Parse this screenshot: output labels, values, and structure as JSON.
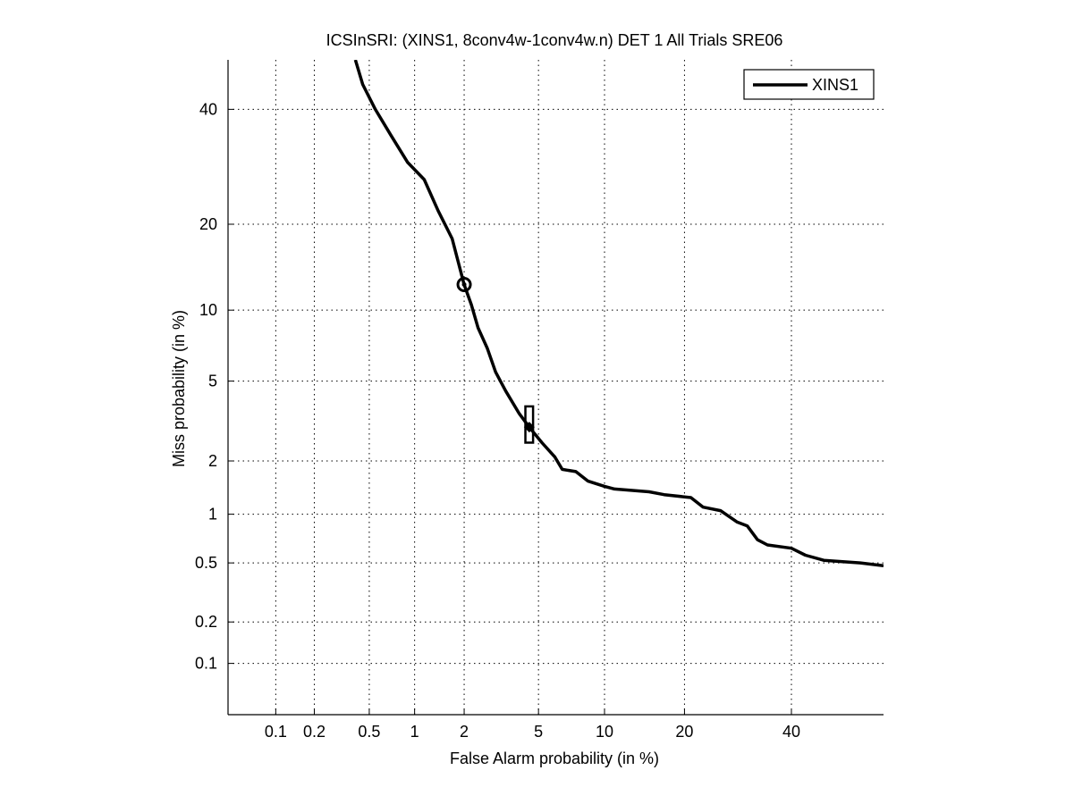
{
  "chart_data": {
    "type": "line",
    "title": "ICSInSRI: (XINS1, 8conv4w-1conv4w.n) DET 1 All Trials SRE06",
    "xlabel": "False Alarm probability (in %)",
    "ylabel": "Miss probability (in %)",
    "x_scale": "probit",
    "y_scale": "probit",
    "xlim": [
      0.04,
      60
    ],
    "ylim": [
      0.04,
      50
    ],
    "x_ticks": [
      0.1,
      0.2,
      0.5,
      1,
      2,
      5,
      10,
      20,
      40
    ],
    "x_tick_labels": [
      "0.1",
      "0.2",
      "0.5",
      "1",
      "2",
      "5",
      "10",
      "20",
      "40"
    ],
    "y_ticks": [
      0.1,
      0.2,
      0.5,
      1,
      2,
      5,
      10,
      20,
      40
    ],
    "y_tick_labels": [
      "0.1",
      "0.2",
      "0.5",
      "1",
      "2",
      "5",
      "10",
      "20",
      "40"
    ],
    "grid": true,
    "grid_style": "dotted",
    "legend_position": "top-right",
    "series": [
      {
        "name": "XINS1",
        "color": "#000000",
        "points": [
          [
            0.4,
            50
          ],
          [
            0.45,
            45
          ],
          [
            0.55,
            40
          ],
          [
            0.7,
            35
          ],
          [
            0.9,
            30
          ],
          [
            1.15,
            27
          ],
          [
            1.4,
            22
          ],
          [
            1.7,
            18
          ],
          [
            1.85,
            15
          ],
          [
            2.0,
            12.5
          ],
          [
            2.2,
            10.5
          ],
          [
            2.4,
            8.5
          ],
          [
            2.7,
            7
          ],
          [
            3.0,
            5.5
          ],
          [
            3.4,
            4.5
          ],
          [
            4.0,
            3.5
          ],
          [
            4.5,
            3.0
          ],
          [
            5.2,
            2.5
          ],
          [
            6.0,
            2.1
          ],
          [
            6.5,
            1.8
          ],
          [
            7.5,
            1.75
          ],
          [
            8.5,
            1.55
          ],
          [
            10,
            1.45
          ],
          [
            11,
            1.4
          ],
          [
            15,
            1.35
          ],
          [
            17,
            1.3
          ],
          [
            21,
            1.25
          ],
          [
            23,
            1.1
          ],
          [
            26,
            1.05
          ],
          [
            29,
            0.9
          ],
          [
            31,
            0.85
          ],
          [
            33,
            0.7
          ],
          [
            35,
            0.65
          ],
          [
            40,
            0.62
          ],
          [
            43,
            0.56
          ],
          [
            47,
            0.52
          ],
          [
            55,
            0.5
          ],
          [
            60,
            0.48
          ]
        ]
      }
    ],
    "markers": [
      {
        "name": "min-dcf-point",
        "shape": "circle",
        "x": 2.0,
        "y": 12.5
      },
      {
        "name": "actual-dcf-point",
        "shape": "diamond",
        "x": 4.5,
        "y": 3.0
      },
      {
        "name": "confidence-box",
        "shape": "rect",
        "x": [
          4.3,
          4.7
        ],
        "y": [
          2.5,
          3.8
        ]
      }
    ]
  }
}
